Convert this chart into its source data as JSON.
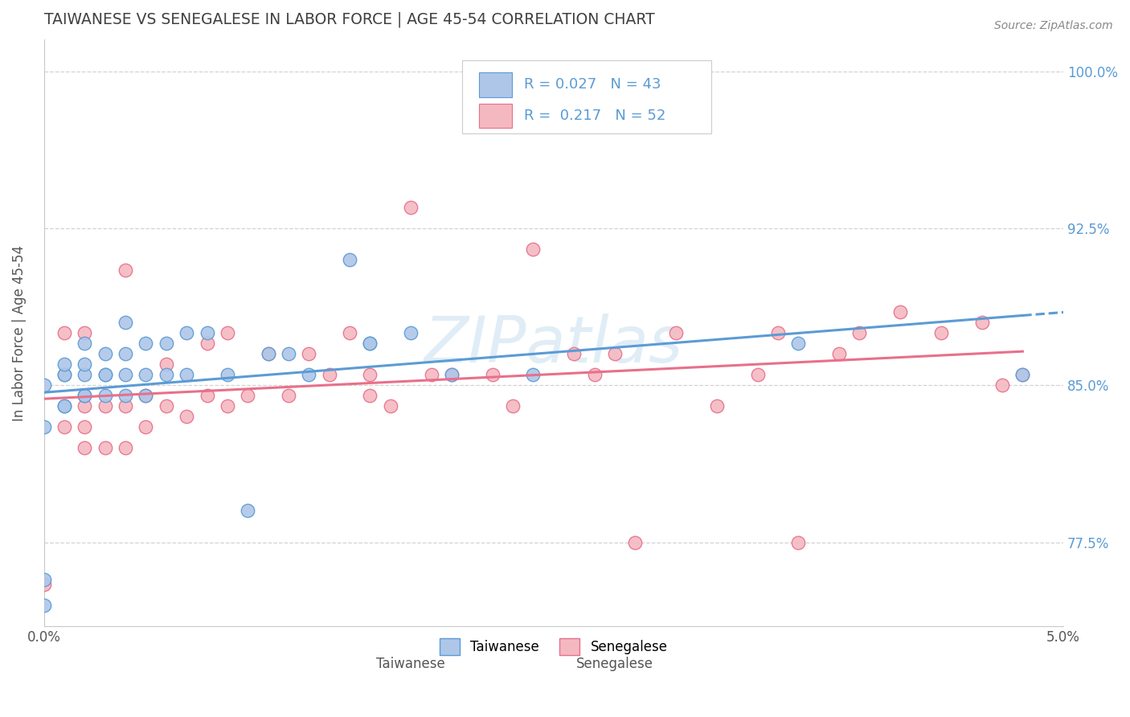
{
  "title": "TAIWANESE VS SENEGALESE IN LABOR FORCE | AGE 45-54 CORRELATION CHART",
  "source": "Source: ZipAtlas.com",
  "ylabel": "In Labor Force | Age 45-54",
  "xlim": [
    0.0,
    0.05
  ],
  "ylim": [
    0.735,
    1.015
  ],
  "yticks": [
    0.775,
    0.85,
    0.925,
    1.0
  ],
  "ytick_labels": [
    "77.5%",
    "85.0%",
    "92.5%",
    "100.0%"
  ],
  "xticks": [
    0.0,
    0.05
  ],
  "xtick_labels": [
    "0.0%",
    "5.0%"
  ],
  "r_taiwanese": 0.027,
  "n_taiwanese": 43,
  "r_senegalese": 0.217,
  "n_senegalese": 52,
  "taiwanese_color": "#aec6e8",
  "senegalese_color": "#f4b8c1",
  "taiwanese_line_color": "#5b9bd5",
  "senegalese_line_color": "#e8708a",
  "legend_text_color": "#5b9bd5",
  "title_color": "#404040",
  "axis_label_color": "#555555",
  "tick_color_right": "#5b9bd5",
  "background_color": "#ffffff",
  "grid_color": "#c8c8c8",
  "watermark_color": "#c8dff0",
  "taiwanese_x": [
    0.0,
    0.0,
    0.0,
    0.0,
    0.001,
    0.001,
    0.001,
    0.001,
    0.001,
    0.002,
    0.002,
    0.002,
    0.002,
    0.002,
    0.003,
    0.003,
    0.003,
    0.003,
    0.004,
    0.004,
    0.004,
    0.004,
    0.005,
    0.005,
    0.005,
    0.006,
    0.006,
    0.007,
    0.007,
    0.008,
    0.009,
    0.01,
    0.011,
    0.012,
    0.013,
    0.015,
    0.016,
    0.016,
    0.018,
    0.02,
    0.024,
    0.037,
    0.048
  ],
  "taiwanese_y": [
    0.745,
    0.757,
    0.83,
    0.85,
    0.84,
    0.84,
    0.855,
    0.855,
    0.86,
    0.845,
    0.845,
    0.855,
    0.86,
    0.87,
    0.845,
    0.855,
    0.855,
    0.865,
    0.845,
    0.855,
    0.865,
    0.88,
    0.845,
    0.855,
    0.87,
    0.855,
    0.87,
    0.855,
    0.875,
    0.875,
    0.855,
    0.79,
    0.865,
    0.865,
    0.855,
    0.91,
    0.87,
    0.87,
    0.875,
    0.855,
    0.855,
    0.87,
    0.855
  ],
  "senegalese_x": [
    0.0,
    0.001,
    0.001,
    0.002,
    0.002,
    0.002,
    0.002,
    0.003,
    0.003,
    0.004,
    0.004,
    0.004,
    0.005,
    0.005,
    0.006,
    0.006,
    0.007,
    0.008,
    0.008,
    0.009,
    0.009,
    0.01,
    0.011,
    0.012,
    0.013,
    0.014,
    0.015,
    0.016,
    0.016,
    0.017,
    0.018,
    0.019,
    0.02,
    0.022,
    0.023,
    0.024,
    0.026,
    0.027,
    0.028,
    0.029,
    0.031,
    0.033,
    0.035,
    0.036,
    0.037,
    0.039,
    0.04,
    0.042,
    0.044,
    0.046,
    0.047,
    0.048
  ],
  "senegalese_y": [
    0.755,
    0.83,
    0.875,
    0.82,
    0.83,
    0.84,
    0.875,
    0.82,
    0.84,
    0.82,
    0.84,
    0.905,
    0.83,
    0.845,
    0.84,
    0.86,
    0.835,
    0.845,
    0.87,
    0.84,
    0.875,
    0.845,
    0.865,
    0.845,
    0.865,
    0.855,
    0.875,
    0.845,
    0.855,
    0.84,
    0.935,
    0.855,
    0.855,
    0.855,
    0.84,
    0.915,
    0.865,
    0.855,
    0.865,
    0.775,
    0.875,
    0.84,
    0.855,
    0.875,
    0.775,
    0.865,
    0.875,
    0.885,
    0.875,
    0.88,
    0.85,
    0.855
  ]
}
